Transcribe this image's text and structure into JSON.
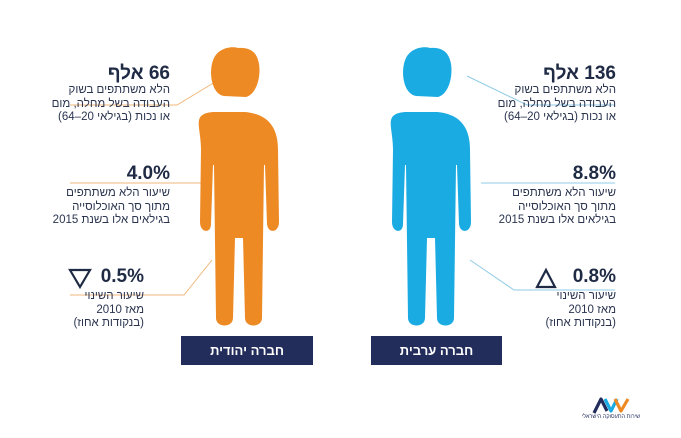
{
  "groups": {
    "arab": {
      "label": "חברה ערבית",
      "color": "#1aabe3",
      "line_color": "#8fcbe6",
      "stat1": {
        "value": "136 אלף",
        "desc": [
          "הלא משתתפים בשוק",
          "העבודה בשל מחלה, מום",
          "או נכות (בגילאי 20–64)"
        ]
      },
      "stat2": {
        "value": "8.8%",
        "desc": [
          "שיעור הלא משתתפים",
          "מתוך סך האוכלוסייה",
          "בגילאים אלו בשנת 2015"
        ]
      },
      "stat3": {
        "value": "0.8%",
        "trend": "up-triangle",
        "desc": [
          "שיעור השינוי",
          "מאז 2010",
          "(בנקודות אחוז)"
        ]
      }
    },
    "jewish": {
      "label": "חברה יהודית",
      "color": "#ee8a24",
      "line_color": "#f2b77a",
      "stat1": {
        "value": "66 אלף",
        "desc": [
          "הלא משתתפים בשוק",
          "העבודה בשל מחלה, מום",
          "או נכות (בגילאי 20–64)"
        ]
      },
      "stat2": {
        "value": "4.0%",
        "desc": [
          "שיעור הלא משתתפים",
          "מתוך סך האוכלוסייה",
          "בגילאים אלו בשנת 2015"
        ]
      },
      "stat3": {
        "value": "0.5%",
        "trend": "down-triangle",
        "desc": [
          "שיעור השינוי",
          "מאז 2010",
          "(בנקודות אחוז)"
        ]
      }
    }
  },
  "logo": {
    "text": "שירות התעסוקה הישראלי",
    "colors": [
      "#232d5c",
      "#1aabe3",
      "#ee8a24"
    ]
  }
}
